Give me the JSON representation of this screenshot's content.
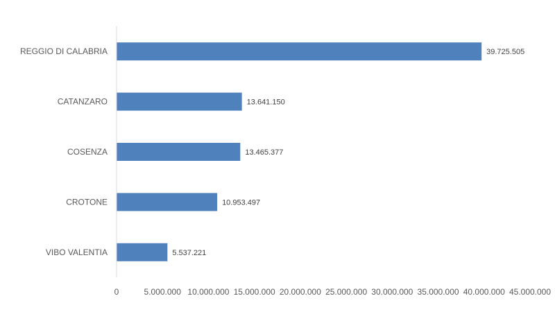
{
  "chart_data": {
    "type": "bar",
    "orientation": "horizontal",
    "categories": [
      "REGGIO DI CALABRIA",
      "CATANZARO",
      "COSENZA",
      "CROTONE",
      "VIBO VALENTIA"
    ],
    "values": [
      39725505,
      13641150,
      13465377,
      10953497,
      5537221
    ],
    "value_labels": [
      "39.725.505",
      "13.641.150",
      "13.465.377",
      "10.953.497",
      "5.537.221"
    ],
    "xlim": [
      0,
      45000000
    ],
    "xticks": [
      0,
      5000000,
      10000000,
      15000000,
      20000000,
      25000000,
      30000000,
      35000000,
      40000000,
      45000000
    ],
    "xtick_labels": [
      "0",
      "5.000.000",
      "10.000.000",
      "15.000.000",
      "20.000.000",
      "25.000.000",
      "30.000.000",
      "35.000.000",
      "40.000.000",
      "45.000.000"
    ],
    "grid": false,
    "legend": "none",
    "bar_color": "#4f81bd",
    "axis_color": "#d9d9d9"
  }
}
